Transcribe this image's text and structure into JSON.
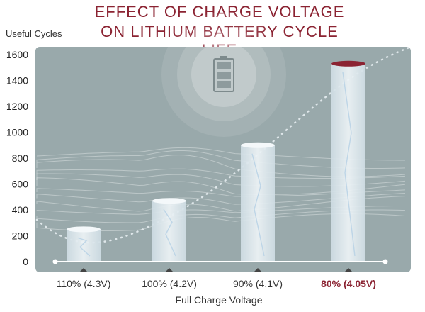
{
  "chart_data": {
    "type": "bar",
    "title_line1": "EFFECT OF CHARGE VOLTAGE",
    "title_line2": "ON LITHIUM BATTERY CYCLE LIFE",
    "ylabel": "Useful Cycles",
    "xlabel": "Full Charge Voltage",
    "categories": [
      "110% (4.3V)",
      "100% (4.2V)",
      "90% (4.1V)",
      "80% (4.05V)"
    ],
    "values": [
      250,
      470,
      900,
      1530
    ],
    "highlight_index": 3,
    "ylim": [
      0,
      1600
    ],
    "yticks": [
      0,
      200,
      400,
      600,
      800,
      1000,
      1200,
      1400,
      1600
    ],
    "grid": false
  },
  "colors": {
    "title": "#8b2332",
    "panel": "#99a9ab",
    "bar": "#dfe9ee",
    "cap_highlight": "#8b2332"
  },
  "icons": [
    "battery-icon"
  ]
}
